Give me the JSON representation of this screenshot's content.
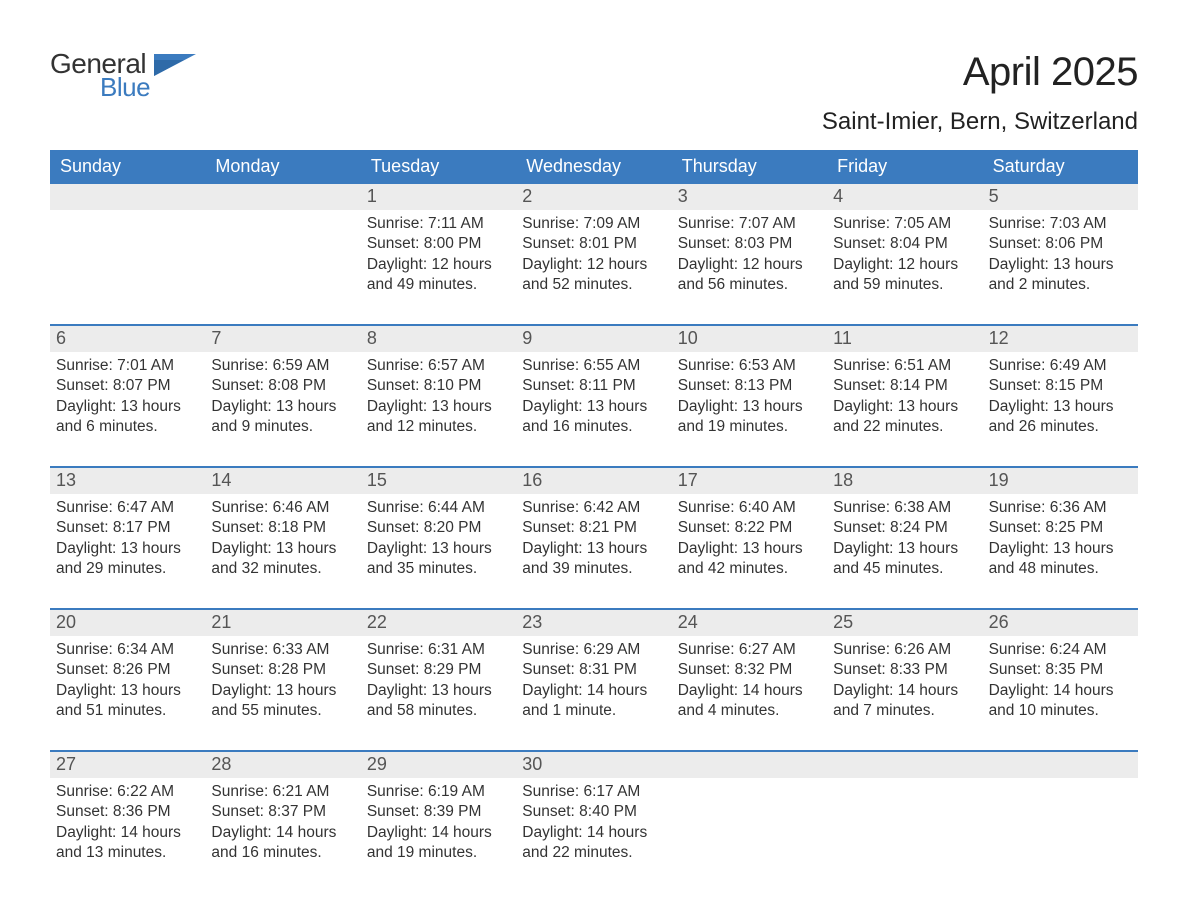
{
  "logo": {
    "general": "General",
    "blue": "Blue"
  },
  "title": "April 2025",
  "location": "Saint-Imier, Bern, Switzerland",
  "colors": {
    "header_bg": "#3b7bbf",
    "header_text": "#ffffff",
    "daynum_bg": "#ececec",
    "daynum_text": "#555555",
    "body_text": "#333333",
    "logo_blue": "#3b7bbf"
  },
  "weekdays": [
    "Sunday",
    "Monday",
    "Tuesday",
    "Wednesday",
    "Thursday",
    "Friday",
    "Saturday"
  ],
  "weeks": [
    [
      {
        "day": "",
        "sunrise": "",
        "sunset": "",
        "daylight": ""
      },
      {
        "day": "",
        "sunrise": "",
        "sunset": "",
        "daylight": ""
      },
      {
        "day": "1",
        "sunrise": "Sunrise: 7:11 AM",
        "sunset": "Sunset: 8:00 PM",
        "daylight": "Daylight: 12 hours and 49 minutes."
      },
      {
        "day": "2",
        "sunrise": "Sunrise: 7:09 AM",
        "sunset": "Sunset: 8:01 PM",
        "daylight": "Daylight: 12 hours and 52 minutes."
      },
      {
        "day": "3",
        "sunrise": "Sunrise: 7:07 AM",
        "sunset": "Sunset: 8:03 PM",
        "daylight": "Daylight: 12 hours and 56 minutes."
      },
      {
        "day": "4",
        "sunrise": "Sunrise: 7:05 AM",
        "sunset": "Sunset: 8:04 PM",
        "daylight": "Daylight: 12 hours and 59 minutes."
      },
      {
        "day": "5",
        "sunrise": "Sunrise: 7:03 AM",
        "sunset": "Sunset: 8:06 PM",
        "daylight": "Daylight: 13 hours and 2 minutes."
      }
    ],
    [
      {
        "day": "6",
        "sunrise": "Sunrise: 7:01 AM",
        "sunset": "Sunset: 8:07 PM",
        "daylight": "Daylight: 13 hours and 6 minutes."
      },
      {
        "day": "7",
        "sunrise": "Sunrise: 6:59 AM",
        "sunset": "Sunset: 8:08 PM",
        "daylight": "Daylight: 13 hours and 9 minutes."
      },
      {
        "day": "8",
        "sunrise": "Sunrise: 6:57 AM",
        "sunset": "Sunset: 8:10 PM",
        "daylight": "Daylight: 13 hours and 12 minutes."
      },
      {
        "day": "9",
        "sunrise": "Sunrise: 6:55 AM",
        "sunset": "Sunset: 8:11 PM",
        "daylight": "Daylight: 13 hours and 16 minutes."
      },
      {
        "day": "10",
        "sunrise": "Sunrise: 6:53 AM",
        "sunset": "Sunset: 8:13 PM",
        "daylight": "Daylight: 13 hours and 19 minutes."
      },
      {
        "day": "11",
        "sunrise": "Sunrise: 6:51 AM",
        "sunset": "Sunset: 8:14 PM",
        "daylight": "Daylight: 13 hours and 22 minutes."
      },
      {
        "day": "12",
        "sunrise": "Sunrise: 6:49 AM",
        "sunset": "Sunset: 8:15 PM",
        "daylight": "Daylight: 13 hours and 26 minutes."
      }
    ],
    [
      {
        "day": "13",
        "sunrise": "Sunrise: 6:47 AM",
        "sunset": "Sunset: 8:17 PM",
        "daylight": "Daylight: 13 hours and 29 minutes."
      },
      {
        "day": "14",
        "sunrise": "Sunrise: 6:46 AM",
        "sunset": "Sunset: 8:18 PM",
        "daylight": "Daylight: 13 hours and 32 minutes."
      },
      {
        "day": "15",
        "sunrise": "Sunrise: 6:44 AM",
        "sunset": "Sunset: 8:20 PM",
        "daylight": "Daylight: 13 hours and 35 minutes."
      },
      {
        "day": "16",
        "sunrise": "Sunrise: 6:42 AM",
        "sunset": "Sunset: 8:21 PM",
        "daylight": "Daylight: 13 hours and 39 minutes."
      },
      {
        "day": "17",
        "sunrise": "Sunrise: 6:40 AM",
        "sunset": "Sunset: 8:22 PM",
        "daylight": "Daylight: 13 hours and 42 minutes."
      },
      {
        "day": "18",
        "sunrise": "Sunrise: 6:38 AM",
        "sunset": "Sunset: 8:24 PM",
        "daylight": "Daylight: 13 hours and 45 minutes."
      },
      {
        "day": "19",
        "sunrise": "Sunrise: 6:36 AM",
        "sunset": "Sunset: 8:25 PM",
        "daylight": "Daylight: 13 hours and 48 minutes."
      }
    ],
    [
      {
        "day": "20",
        "sunrise": "Sunrise: 6:34 AM",
        "sunset": "Sunset: 8:26 PM",
        "daylight": "Daylight: 13 hours and 51 minutes."
      },
      {
        "day": "21",
        "sunrise": "Sunrise: 6:33 AM",
        "sunset": "Sunset: 8:28 PM",
        "daylight": "Daylight: 13 hours and 55 minutes."
      },
      {
        "day": "22",
        "sunrise": "Sunrise: 6:31 AM",
        "sunset": "Sunset: 8:29 PM",
        "daylight": "Daylight: 13 hours and 58 minutes."
      },
      {
        "day": "23",
        "sunrise": "Sunrise: 6:29 AM",
        "sunset": "Sunset: 8:31 PM",
        "daylight": "Daylight: 14 hours and 1 minute."
      },
      {
        "day": "24",
        "sunrise": "Sunrise: 6:27 AM",
        "sunset": "Sunset: 8:32 PM",
        "daylight": "Daylight: 14 hours and 4 minutes."
      },
      {
        "day": "25",
        "sunrise": "Sunrise: 6:26 AM",
        "sunset": "Sunset: 8:33 PM",
        "daylight": "Daylight: 14 hours and 7 minutes."
      },
      {
        "day": "26",
        "sunrise": "Sunrise: 6:24 AM",
        "sunset": "Sunset: 8:35 PM",
        "daylight": "Daylight: 14 hours and 10 minutes."
      }
    ],
    [
      {
        "day": "27",
        "sunrise": "Sunrise: 6:22 AM",
        "sunset": "Sunset: 8:36 PM",
        "daylight": "Daylight: 14 hours and 13 minutes."
      },
      {
        "day": "28",
        "sunrise": "Sunrise: 6:21 AM",
        "sunset": "Sunset: 8:37 PM",
        "daylight": "Daylight: 14 hours and 16 minutes."
      },
      {
        "day": "29",
        "sunrise": "Sunrise: 6:19 AM",
        "sunset": "Sunset: 8:39 PM",
        "daylight": "Daylight: 14 hours and 19 minutes."
      },
      {
        "day": "30",
        "sunrise": "Sunrise: 6:17 AM",
        "sunset": "Sunset: 8:40 PM",
        "daylight": "Daylight: 14 hours and 22 minutes."
      },
      {
        "day": "",
        "sunrise": "",
        "sunset": "",
        "daylight": ""
      },
      {
        "day": "",
        "sunrise": "",
        "sunset": "",
        "daylight": ""
      },
      {
        "day": "",
        "sunrise": "",
        "sunset": "",
        "daylight": ""
      }
    ]
  ]
}
